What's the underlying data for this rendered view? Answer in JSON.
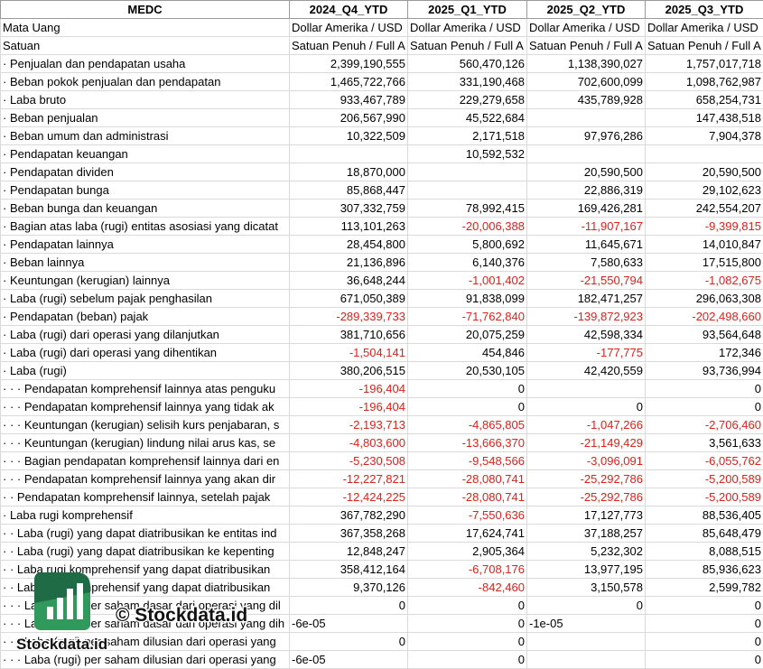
{
  "table": {
    "header": [
      "MEDC",
      "2024_Q4_YTD",
      "2025_Q1_YTD",
      "2025_Q2_YTD",
      "2025_Q3_YTD"
    ],
    "rows": [
      [
        "Mata Uang",
        "Dollar Amerika / USD",
        "Dollar Amerika / USD",
        "Dollar Amerika / USD",
        "Dollar Amerika / USD"
      ],
      [
        "Satuan",
        "Satuan Penuh / Full A",
        "Satuan Penuh / Full A",
        "Satuan Penuh / Full A",
        "Satuan Penuh / Full A"
      ],
      [
        "· Penjualan dan pendapatan usaha",
        "2,399,190,555",
        "560,470,126",
        "1,138,390,027",
        "1,757,017,718"
      ],
      [
        "· Beban pokok penjualan dan pendapatan",
        "1,465,722,766",
        "331,190,468",
        "702,600,099",
        "1,098,762,987"
      ],
      [
        "· Laba bruto",
        "933,467,789",
        "229,279,658",
        "435,789,928",
        "658,254,731"
      ],
      [
        "· Beban penjualan",
        "206,567,990",
        "45,522,684",
        "",
        "147,438,518"
      ],
      [
        "· Beban umum dan administrasi",
        "10,322,509",
        "2,171,518",
        "97,976,286",
        "7,904,378"
      ],
      [
        "· Pendapatan keuangan",
        "",
        "10,592,532",
        "",
        ""
      ],
      [
        "· Pendapatan dividen",
        "18,870,000",
        "",
        "20,590,500",
        "20,590,500"
      ],
      [
        "· Pendapatan bunga",
        "85,868,447",
        "",
        "22,886,319",
        "29,102,623"
      ],
      [
        "· Beban bunga dan keuangan",
        "307,332,759",
        "78,992,415",
        "169,426,281",
        "242,554,207"
      ],
      [
        "· Bagian atas laba (rugi) entitas asosiasi yang dicatat",
        "113,101,263",
        "-20,006,388",
        "-11,907,167",
        "-9,399,815"
      ],
      [
        "· Pendapatan lainnya",
        "28,454,800",
        "5,800,692",
        "11,645,671",
        "14,010,847"
      ],
      [
        "· Beban lainnya",
        "21,136,896",
        "6,140,376",
        "7,580,633",
        "17,515,800"
      ],
      [
        "· Keuntungan (kerugian) lainnya",
        "36,648,244",
        "-1,001,402",
        "-21,550,794",
        "-1,082,675"
      ],
      [
        "· Laba (rugi) sebelum pajak penghasilan",
        "671,050,389",
        "91,838,099",
        "182,471,257",
        "296,063,308"
      ],
      [
        "· Pendapatan (beban) pajak",
        "-289,339,733",
        "-71,762,840",
        "-139,872,923",
        "-202,498,660"
      ],
      [
        "· Laba (rugi) dari operasi yang dilanjutkan",
        "381,710,656",
        "20,075,259",
        "42,598,334",
        "93,564,648"
      ],
      [
        "· Laba (rugi) dari operasi yang dihentikan",
        "-1,504,141",
        "454,846",
        "-177,775",
        "172,346"
      ],
      [
        "· Laba (rugi)",
        "380,206,515",
        "20,530,105",
        "42,420,559",
        "93,736,994"
      ],
      [
        "· · · Pendapatan komprehensif lainnya atas penguku",
        "-196,404",
        "0",
        "",
        "0"
      ],
      [
        "· · · Pendapatan komprehensif lainnya yang tidak ak",
        "-196,404",
        "0",
        "0",
        "0"
      ],
      [
        "· · · Keuntungan (kerugian) selisih kurs penjabaran, s",
        "-2,193,713",
        "-4,865,805",
        "-1,047,266",
        "-2,706,460"
      ],
      [
        "· · · Keuntungan (kerugian) lindung nilai arus kas, se",
        "-4,803,600",
        "-13,666,370",
        "-21,149,429",
        "3,561,633"
      ],
      [
        "· · · Bagian pendapatan komprehensif lainnya dari en",
        "-5,230,508",
        "-9,548,566",
        "-3,096,091",
        "-6,055,762"
      ],
      [
        "· · · Pendapatan komprehensif lainnya yang akan dir",
        "-12,227,821",
        "-28,080,741",
        "-25,292,786",
        "-5,200,589"
      ],
      [
        "· · Pendapatan komprehensif lainnya, setelah pajak",
        "-12,424,225",
        "-28,080,741",
        "-25,292,786",
        "-5,200,589"
      ],
      [
        "· Laba rugi komprehensif",
        "367,782,290",
        "-7,550,636",
        "17,127,773",
        "88,536,405"
      ],
      [
        "· · Laba (rugi) yang dapat diatribusikan ke entitas ind",
        "367,358,268",
        "17,624,741",
        "37,188,257",
        "85,648,479"
      ],
      [
        "· · Laba (rugi) yang dapat diatribusikan ke kepenting",
        "12,848,247",
        "2,905,364",
        "5,232,302",
        "8,088,515"
      ],
      [
        "· · Laba rugi komprehensif yang dapat diatribusikan",
        "358,412,164",
        "-6,708,176",
        "13,977,195",
        "85,936,623"
      ],
      [
        "· · Laba rugi komprehensif yang dapat diatribusikan",
        "9,370,126",
        "-842,460",
        "3,150,578",
        "2,599,782"
      ],
      [
        "· · · Laba (rugi) per saham dasar dari operasi yang dil",
        "0",
        "0",
        "0",
        "0"
      ],
      [
        "· · · Laba (rugi) per saham dasar dari operasi yang dih",
        "-6e-05",
        "0",
        "-1e-05",
        "0"
      ],
      [
        "· · · Laba (rugi) per saham dilusian dari operasi yang",
        "0",
        "0",
        "",
        "0"
      ],
      [
        "· · · Laba (rugi) per saham dilusian dari operasi yang",
        "-6e-05",
        "0",
        "",
        "0"
      ]
    ]
  },
  "watermark": {
    "copyright": "© Stockdata.id",
    "brand": "Stockdata.id"
  }
}
